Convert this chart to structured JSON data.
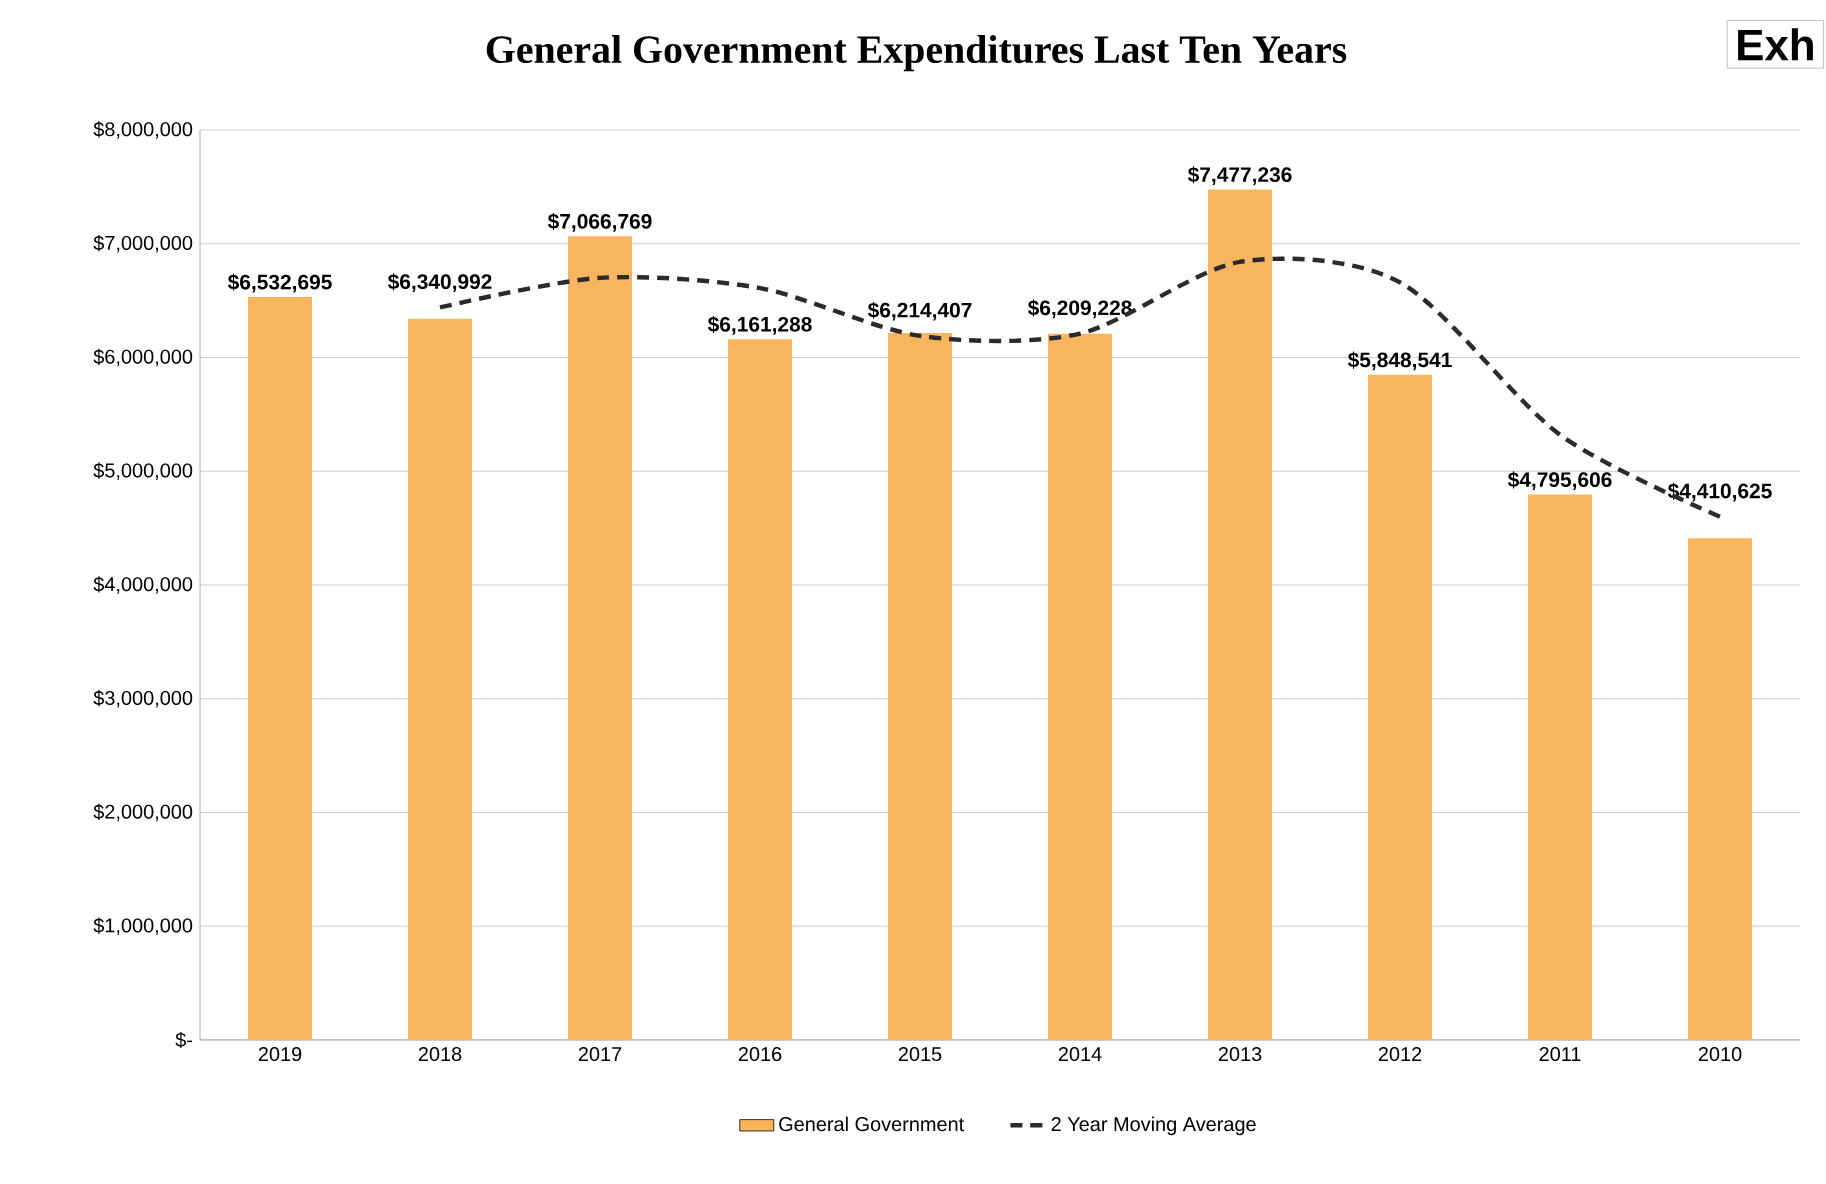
{
  "chart_data": {
    "type": "bar",
    "title": "General Government Expenditures  Last Ten Years",
    "categories": [
      "2019",
      "2018",
      "2017",
      "2016",
      "2015",
      "2014",
      "2013",
      "2012",
      "2011",
      "2010"
    ],
    "series": [
      {
        "name": "General Government",
        "color": "#f9b55e",
        "values": [
          6532695,
          6340992,
          7066769,
          6161288,
          6214407,
          6209228,
          7477236,
          5848541,
          4795606,
          4410625
        ],
        "value_labels": [
          "$6,532,695",
          "$6,340,992",
          "$7,066,769",
          "$6,161,288",
          "$6,214,407",
          "$6,209,228",
          "$7,477,236",
          "$5,848,541",
          "$4,795,606",
          "$4,410,625"
        ]
      },
      {
        "name": "2 Year Moving Average",
        "type": "line",
        "color": "#2b2b2b",
        "line_style": "dashed",
        "values": [
          null,
          6440000,
          6700000,
          6610000,
          6190000,
          6210000,
          6840000,
          6660000,
          5320000,
          4600000
        ]
      }
    ],
    "ylim": [
      0,
      8000000
    ],
    "yticks": [
      {
        "value": 0,
        "label": "$-"
      },
      {
        "value": 1000000,
        "label": "$1,000,000"
      },
      {
        "value": 2000000,
        "label": "$2,000,000"
      },
      {
        "value": 3000000,
        "label": "$3,000,000"
      },
      {
        "value": 4000000,
        "label": "$4,000,000"
      },
      {
        "value": 5000000,
        "label": "$5,000,000"
      },
      {
        "value": 6000000,
        "label": "$6,000,000"
      },
      {
        "value": 7000000,
        "label": "$7,000,000"
      },
      {
        "value": 8000000,
        "label": "$8,000,000"
      }
    ],
    "grid": "y",
    "legend": "bottom",
    "annotations": [
      "Exh"
    ]
  }
}
